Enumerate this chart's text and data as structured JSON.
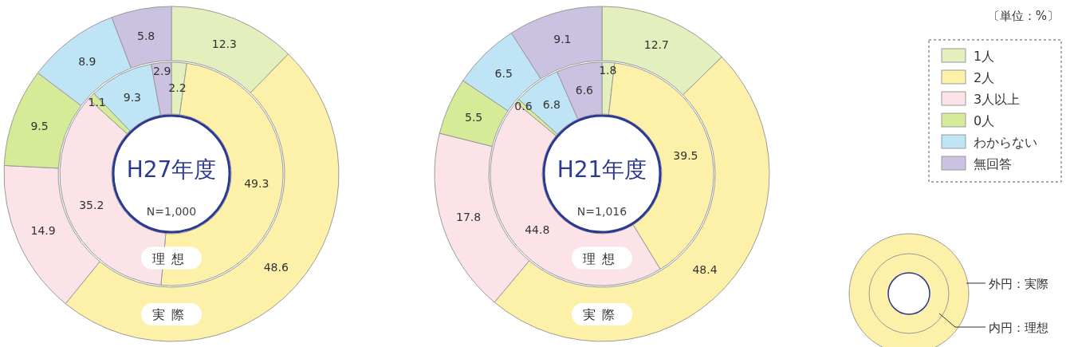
{
  "chart_data": [
    {
      "type": "donut",
      "title": "H27年度",
      "subtitle": "N=1,000",
      "colors": [
        "#e4efbe",
        "#fdf1a9",
        "#fbe3e8",
        "#d5eb98",
        "#bfe4f6",
        "#cbc2e1"
      ],
      "data_labels": true,
      "series": [
        {
          "name": "実際",
          "values": [
            12.3,
            48.6,
            14.9,
            9.5,
            8.9,
            5.8
          ]
        },
        {
          "name": "理想",
          "values": [
            2.2,
            49.3,
            35.2,
            1.1,
            9.3,
            2.9
          ]
        }
      ]
    },
    {
      "type": "donut",
      "title": "H21年度",
      "subtitle": "N=1,016",
      "categories": [
        "1人",
        "2人",
        "3人以上",
        "0人",
        "わからない",
        "無回答"
      ],
      "colors": [
        "#e4efbe",
        "#fdf1a9",
        "#fbe3e8",
        "#d5eb98",
        "#bfe4f6",
        "#cbc2e1"
      ],
      "data_labels": true,
      "legend": "right",
      "annotations": [
        "〔単位：%〕",
        "外円：実際",
        "内円：理想"
      ],
      "series": [
        {
          "name": "実際",
          "values": [
            12.7,
            48.4,
            17.8,
            5.5,
            6.5,
            9.1
          ]
        },
        {
          "name": "理想",
          "values": [
            1.8,
            39.5,
            44.8,
            0.6,
            6.8,
            6.6
          ]
        }
      ]
    }
  ]
}
